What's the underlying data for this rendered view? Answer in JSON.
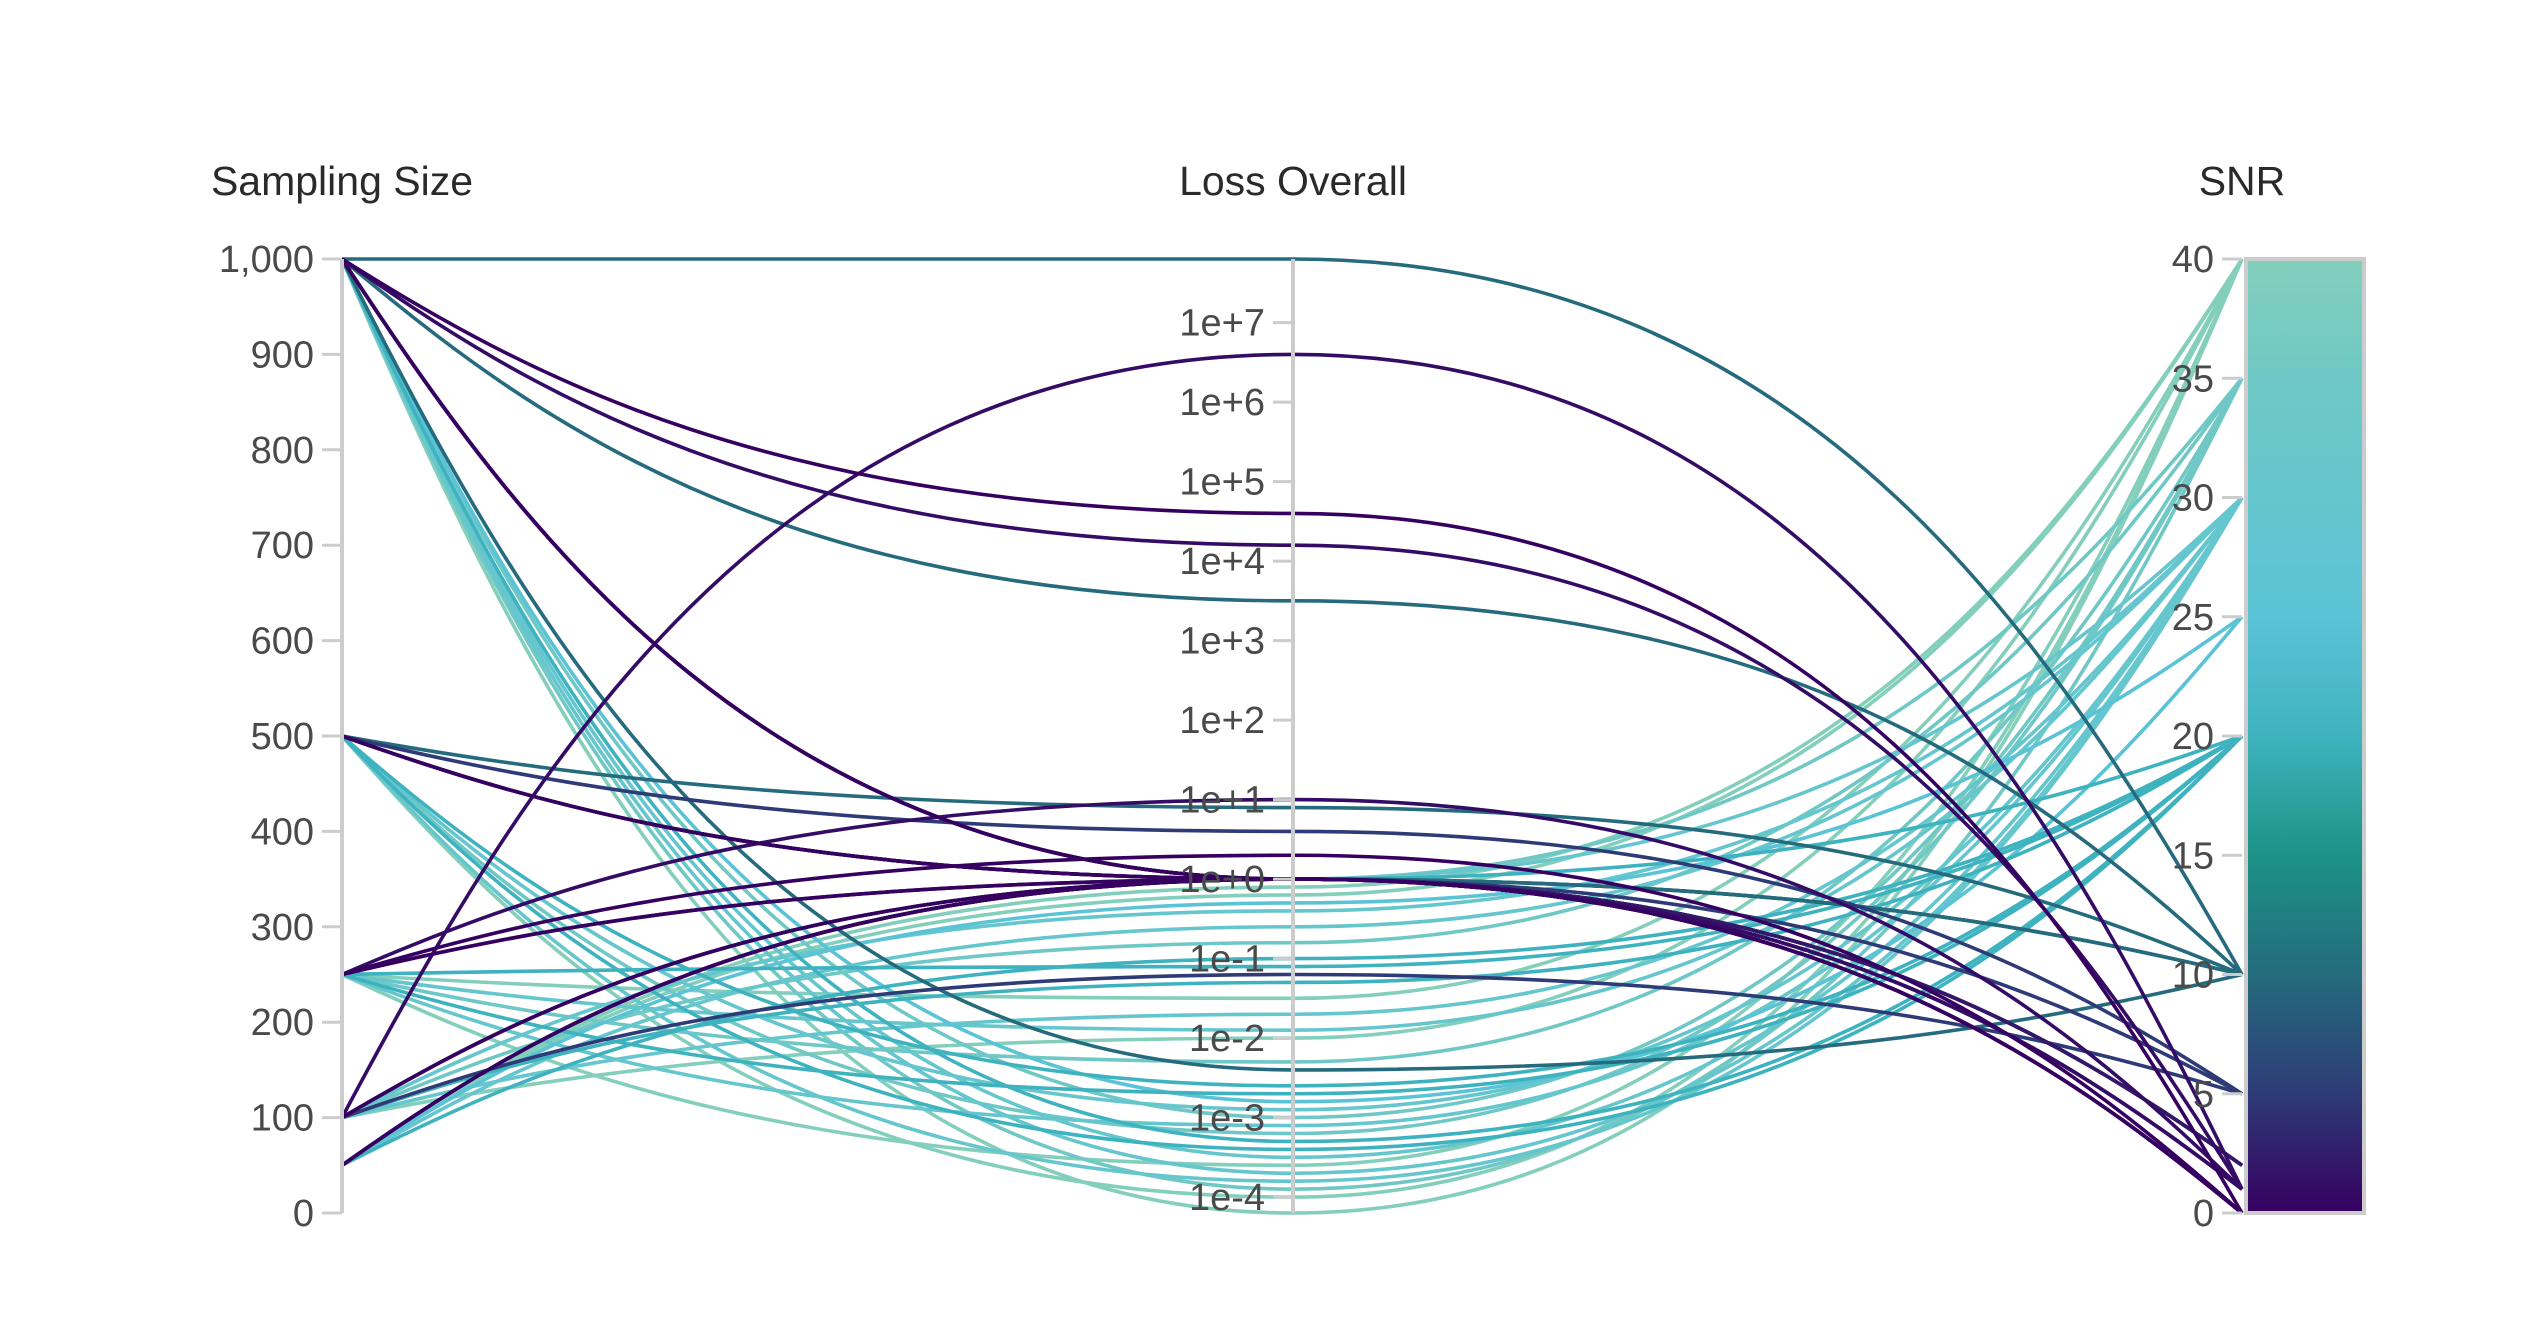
{
  "chart_data": {
    "type": "parallel_coordinates",
    "dimensions": [
      {
        "key": "sampling_size",
        "label": "Sampling Size",
        "scale": "linear",
        "range": [
          0,
          1000
        ],
        "ticks": [
          0,
          100,
          200,
          300,
          400,
          500,
          600,
          700,
          800,
          900,
          1000
        ],
        "tick_labels": [
          "0",
          "100",
          "200",
          "300",
          "400",
          "500",
          "600",
          "700",
          "800",
          "900",
          "1,000"
        ]
      },
      {
        "key": "loss_overall",
        "label": "Loss Overall",
        "scale": "log10",
        "range_exp": [
          -4.2,
          7.8
        ],
        "ticks_exp": [
          -4,
          -3,
          -2,
          -1,
          0,
          1,
          2,
          3,
          4,
          5,
          6,
          7
        ],
        "tick_labels": [
          "1e-4",
          "1e-3",
          "1e-2",
          "1e-1",
          "1e+0",
          "1e+1",
          "1e+2",
          "1e+3",
          "1e+4",
          "1e+5",
          "1e+6",
          "1e+7"
        ]
      },
      {
        "key": "snr",
        "label": "SNR",
        "scale": "linear",
        "range": [
          0,
          40
        ],
        "ticks": [
          0,
          5,
          10,
          15,
          20,
          25,
          30,
          35,
          40
        ],
        "tick_labels": [
          "0",
          "5",
          "10",
          "15",
          "20",
          "25",
          "30",
          "35",
          "40"
        ]
      }
    ],
    "colorscale": {
      "title": "SNR",
      "range": [
        0,
        40
      ],
      "stops": [
        [
          0.0,
          "#360061"
        ],
        [
          0.125,
          "#2e3b76"
        ],
        [
          0.25,
          "#256b7d"
        ],
        [
          0.375,
          "#1c9386"
        ],
        [
          0.5,
          "#3eb3bf"
        ],
        [
          0.625,
          "#5bc3d6"
        ],
        [
          0.875,
          "#6fc8c5"
        ],
        [
          1.0,
          "#83cfbc"
        ]
      ]
    },
    "records_columns": [
      "sampling_size",
      "loss_exp",
      "snr"
    ],
    "records": [
      [
        1000,
        7.8,
        10
      ],
      [
        1000,
        4.2,
        1
      ],
      [
        1000,
        4.6,
        0
      ],
      [
        1000,
        0,
        1
      ],
      [
        1000,
        0,
        2
      ],
      [
        1000,
        0,
        0
      ],
      [
        1000,
        0,
        5
      ],
      [
        1000,
        0,
        10
      ],
      [
        1000,
        -2.4,
        10
      ],
      [
        1000,
        3.5,
        10
      ],
      [
        1000,
        -4.2,
        40
      ],
      [
        1000,
        -3.9,
        35
      ],
      [
        1000,
        -3.7,
        30
      ],
      [
        1000,
        -3.5,
        30
      ],
      [
        1000,
        -3.3,
        20
      ],
      [
        1000,
        -3.0,
        35
      ],
      [
        1000,
        -2.8,
        25
      ],
      [
        500,
        0,
        0
      ],
      [
        500,
        0,
        1
      ],
      [
        500,
        0,
        2
      ],
      [
        500,
        0.6,
        5
      ],
      [
        500,
        0.9,
        10
      ],
      [
        500,
        0,
        10
      ],
      [
        500,
        -4.0,
        40
      ],
      [
        500,
        -3.8,
        30
      ],
      [
        500,
        -3.4,
        20
      ],
      [
        500,
        -3.2,
        35
      ],
      [
        500,
        -2.9,
        30
      ],
      [
        500,
        -2.6,
        20
      ],
      [
        250,
        1.0,
        1
      ],
      [
        250,
        0.3,
        0
      ],
      [
        250,
        0,
        0
      ],
      [
        250,
        0,
        2
      ],
      [
        250,
        -3.6,
        40
      ],
      [
        250,
        -3.1,
        30
      ],
      [
        250,
        -2.7,
        20
      ],
      [
        250,
        -2.3,
        35
      ],
      [
        250,
        -1.9,
        30
      ],
      [
        250,
        -1.5,
        40
      ],
      [
        250,
        -1.1,
        20
      ],
      [
        100,
        6.6,
        1
      ],
      [
        100,
        0,
        0
      ],
      [
        100,
        0,
        2
      ],
      [
        100,
        -1.2,
        5
      ],
      [
        100,
        0,
        10
      ],
      [
        100,
        -2.0,
        40
      ],
      [
        100,
        -1.7,
        30
      ],
      [
        100,
        -1.3,
        20
      ],
      [
        100,
        -0.8,
        35
      ],
      [
        100,
        -0.4,
        30
      ],
      [
        50,
        0,
        1
      ],
      [
        50,
        0,
        0
      ],
      [
        50,
        0,
        2
      ],
      [
        50,
        -0.2,
        40
      ],
      [
        50,
        -0.6,
        30
      ],
      [
        50,
        -1.0,
        20
      ],
      [
        50,
        0,
        35
      ],
      [
        50,
        0,
        30
      ],
      [
        50,
        0,
        20
      ],
      [
        50,
        -0.3,
        25
      ],
      [
        50,
        -0.1,
        40
      ]
    ]
  }
}
